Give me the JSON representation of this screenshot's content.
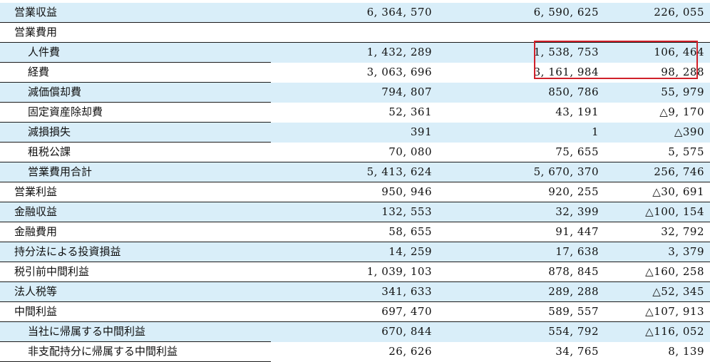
{
  "rows": [
    {
      "label": "営業収益",
      "level": 0,
      "a": "6, 364, 570",
      "b": "6, 590, 625",
      "c": "226, 055",
      "shaded": true,
      "sub": false,
      "subtotal": false
    },
    {
      "label": "営業費用",
      "level": 0,
      "a": "",
      "b": "",
      "c": "",
      "shaded": false,
      "sub": false,
      "subtotal": false
    },
    {
      "label": "人件費",
      "level": 1,
      "a": "1, 432, 289",
      "b": "1, 538, 753",
      "c": "106, 464",
      "shaded": true,
      "sub": true,
      "subtotal": false
    },
    {
      "label": "経費",
      "level": 1,
      "a": "3, 063, 696",
      "b": "3, 161, 984",
      "c": "98, 288",
      "shaded": false,
      "sub": true,
      "subtotal": false
    },
    {
      "label": "減価償却費",
      "level": 1,
      "a": "794, 807",
      "b": "850, 786",
      "c": "55, 979",
      "shaded": true,
      "sub": true,
      "subtotal": false
    },
    {
      "label": "固定資産除却費",
      "level": 1,
      "a": "52, 361",
      "b": "43, 191",
      "c": "△9, 170",
      "shaded": false,
      "sub": true,
      "subtotal": false
    },
    {
      "label": "減損損失",
      "level": 1,
      "a": "391",
      "b": "1",
      "c": "△390",
      "shaded": true,
      "sub": true,
      "subtotal": false
    },
    {
      "label": "租税公課",
      "level": 1,
      "a": "70, 080",
      "b": "75, 655",
      "c": "5, 575",
      "shaded": false,
      "sub": true,
      "subtotal": false
    },
    {
      "label": "営業費用合計",
      "level": 1,
      "a": "5, 413, 624",
      "b": "5, 670, 370",
      "c": "256, 746",
      "shaded": true,
      "sub": false,
      "subtotal": true
    },
    {
      "label": "営業利益",
      "level": 0,
      "a": "950, 946",
      "b": "920, 255",
      "c": "△30, 691",
      "shaded": false,
      "sub": false,
      "subtotal": false
    },
    {
      "label": "金融収益",
      "level": 0,
      "a": "132, 553",
      "b": "32, 399",
      "c": "△100, 154",
      "shaded": true,
      "sub": false,
      "subtotal": false
    },
    {
      "label": "金融費用",
      "level": 0,
      "a": "58, 655",
      "b": "91, 447",
      "c": "32, 792",
      "shaded": false,
      "sub": false,
      "subtotal": false
    },
    {
      "label": "持分法による投資損益",
      "level": 0,
      "a": "14, 259",
      "b": "17, 638",
      "c": "3, 379",
      "shaded": true,
      "sub": false,
      "subtotal": false
    },
    {
      "label": "税引前中間利益",
      "level": 0,
      "a": "1, 039, 103",
      "b": "878, 845",
      "c": "△160, 258",
      "shaded": false,
      "sub": false,
      "subtotal": false
    },
    {
      "label": "法人税等",
      "level": 0,
      "a": "341, 633",
      "b": "289, 288",
      "c": "△52, 345",
      "shaded": true,
      "sub": false,
      "subtotal": false
    },
    {
      "label": "中間利益",
      "level": 0,
      "a": "697, 470",
      "b": "589, 557",
      "c": "△107, 913",
      "shaded": false,
      "sub": false,
      "subtotal": false
    },
    {
      "label": "当社に帰属する中間利益",
      "level": 1,
      "a": "670, 844",
      "b": "554, 792",
      "c": "△116, 052",
      "shaded": true,
      "sub": true,
      "subtotal": false
    },
    {
      "label": "非支配持分に帰属する中間利益",
      "level": 1,
      "a": "26, 626",
      "b": "34, 765",
      "c": "8, 139",
      "shaded": false,
      "sub": true,
      "subtotal": false
    }
  ],
  "highlight": {
    "color": "#d0202a"
  }
}
